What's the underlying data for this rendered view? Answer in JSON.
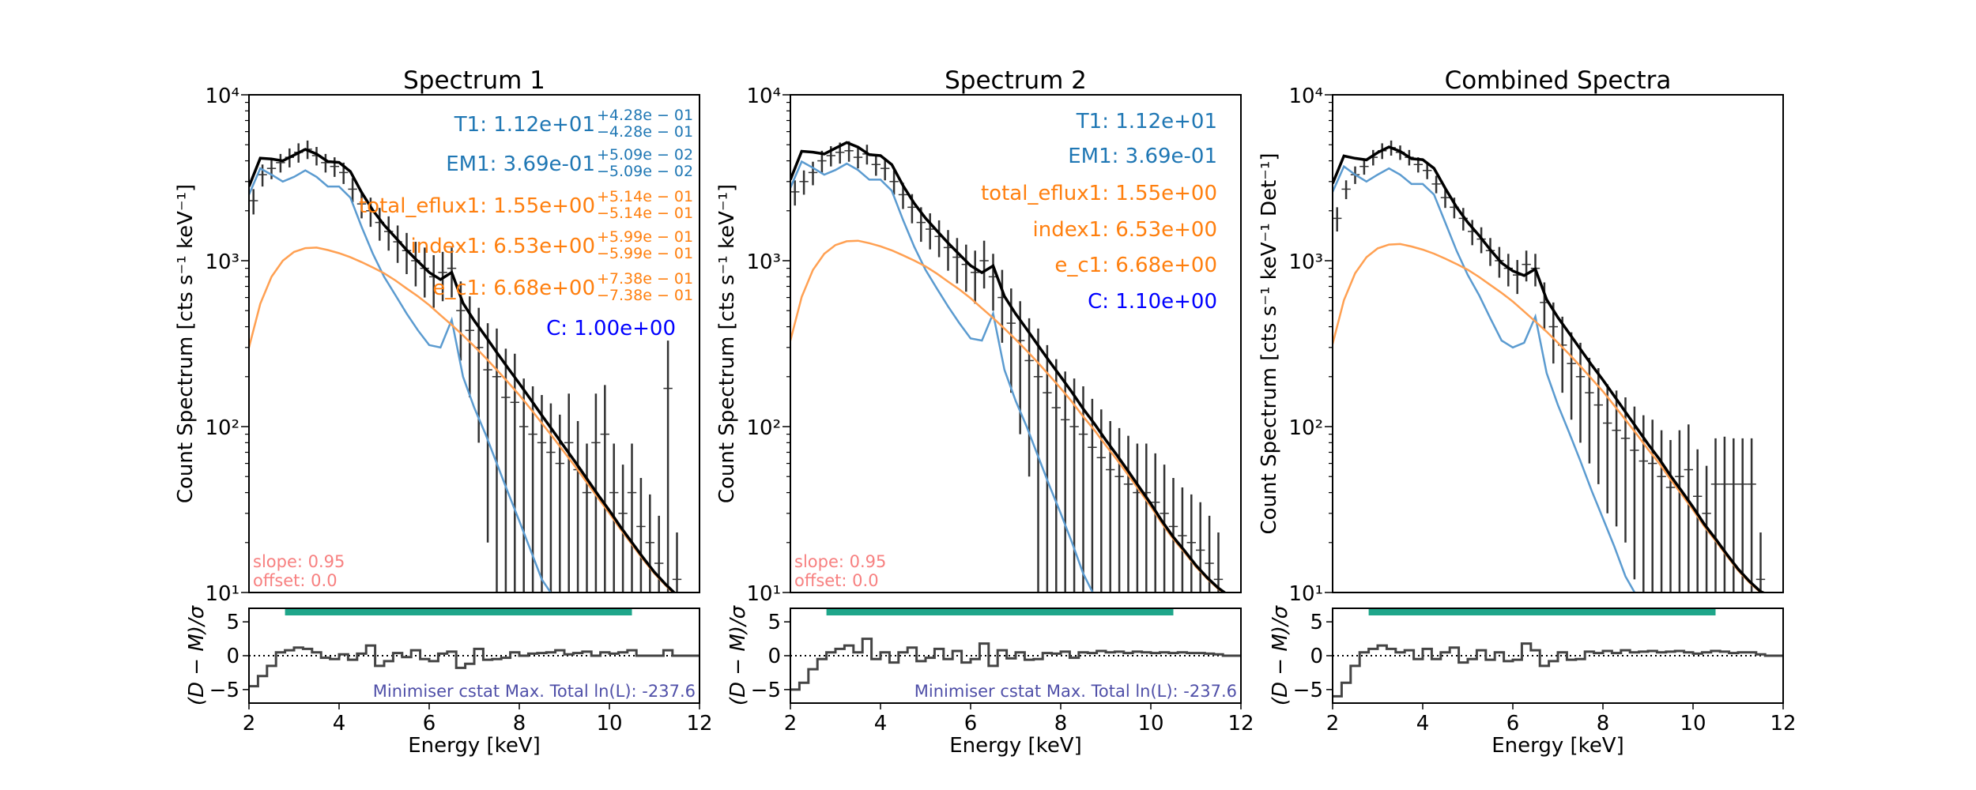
{
  "colors": {
    "thermal": "#5b9bd0",
    "nonthermal": "#ffa052",
    "total": "#000000",
    "data": "#333333",
    "residual": "#444444",
    "fit_range": "#1fa68a",
    "param_thermal": "#1f77b4",
    "param_nonthermal": "#ff7f0e",
    "param_const": "#0000ff",
    "calib": "#f78080",
    "stat": "#4f4fa8"
  },
  "chart_data": [
    {
      "type": "line",
      "title": "Spectrum 1",
      "ylabel": "Count Spectrum [cts s⁻¹ keV⁻¹]",
      "xlabel": "Energy [keV]",
      "residual_ylabel": "(D − M)/σ",
      "yscale": "log",
      "xlim": [
        2,
        12
      ],
      "ylim": [
        10,
        10000
      ],
      "residual_ylim": [
        -7,
        7
      ],
      "x_ticks": [
        "2",
        "4",
        "6",
        "8",
        "10",
        "12"
      ],
      "y_ticks": [
        "10¹",
        "10²",
        "10³",
        "10⁴"
      ],
      "residual_ticks": [
        "5",
        "0",
        "−5"
      ],
      "fit_range": [
        2.8,
        10.5
      ],
      "model_energy": [
        2,
        2.25,
        2.5,
        2.75,
        3,
        3.25,
        3.5,
        3.75,
        4,
        4.25,
        4.5,
        4.75,
        5,
        5.25,
        5.5,
        5.75,
        6,
        6.25,
        6.5,
        6.75,
        7,
        7.25,
        7.5,
        7.75,
        8,
        8.25,
        8.5,
        8.75,
        9,
        9.25,
        9.5,
        9.75,
        10,
        10.25,
        10.5,
        10.75,
        11,
        11.25,
        11.5,
        11.75,
        12
      ],
      "thermal": [
        2500,
        3600,
        3300,
        3000,
        3200,
        3500,
        3200,
        2800,
        2800,
        2400,
        1600,
        1100,
        800,
        620,
        480,
        380,
        310,
        300,
        440,
        200,
        130,
        90,
        60,
        40,
        27,
        18,
        12,
        8,
        5.5,
        3.7,
        2.5,
        1.7,
        1.2,
        0.8,
        0.55,
        0.38,
        0.26,
        0.18,
        0.12,
        0.08,
        0.06
      ],
      "nonthermal": [
        300,
        550,
        800,
        1000,
        1130,
        1190,
        1200,
        1160,
        1110,
        1050,
        980,
        910,
        840,
        760,
        680,
        610,
        540,
        470,
        410,
        355,
        305,
        260,
        220,
        185,
        155,
        128,
        105,
        86,
        70,
        57,
        46,
        37,
        30,
        24,
        19.5,
        15.8,
        13,
        11,
        9.5,
        8,
        7
      ],
      "data_energy": [
        2.1,
        2.3,
        2.5,
        2.7,
        2.9,
        3.1,
        3.3,
        3.5,
        3.7,
        3.9,
        4.1,
        4.3,
        4.5,
        4.7,
        4.9,
        5.1,
        5.3,
        5.5,
        5.7,
        5.9,
        6.1,
        6.3,
        6.5,
        6.7,
        6.9,
        7.1,
        7.3,
        7.5,
        7.7,
        7.9,
        8.1,
        8.3,
        8.5,
        8.7,
        8.9,
        9.1,
        9.3,
        9.5,
        9.7,
        9.9,
        10.1,
        10.3,
        10.5,
        10.7,
        10.9,
        11.1,
        11.3,
        11.5
      ],
      "counts": [
        2300,
        3300,
        3600,
        3900,
        4200,
        4500,
        4700,
        4300,
        3900,
        3700,
        3400,
        2700,
        2200,
        2000,
        1700,
        1500,
        1300,
        1150,
        1000,
        900,
        800,
        850,
        900,
        500,
        380,
        300,
        220,
        200,
        150,
        140,
        100,
        90,
        80,
        70,
        60,
        80,
        55,
        40,
        80,
        90,
        40,
        30,
        40,
        25,
        20,
        15,
        170,
        12
      ],
      "errors": [
        400,
        500,
        500,
        500,
        550,
        600,
        600,
        550,
        500,
        500,
        500,
        450,
        400,
        400,
        380,
        350,
        330,
        320,
        300,
        300,
        280,
        280,
        300,
        250,
        230,
        220,
        200,
        190,
        145,
        135,
        95,
        85,
        75,
        68,
        58,
        78,
        53,
        39,
        78,
        88,
        39,
        29,
        39,
        24,
        19,
        14,
        160,
        11
      ],
      "residuals": [
        -4.5,
        -3,
        -1.5,
        0.5,
        0.8,
        1.2,
        1,
        0.5,
        -0.3,
        -0.5,
        0.2,
        -0.6,
        0.3,
        1.5,
        -1.5,
        -0.8,
        0.4,
        -0.2,
        0.8,
        -0.5,
        -0.8,
        0.3,
        0.6,
        -1.8,
        -1.2,
        1,
        -0.6,
        -0.5,
        -0.3,
        0.5,
        0,
        0.3,
        0.4,
        0.5,
        0.8,
        0.2,
        0.4,
        0.6,
        0,
        0.5,
        0.3,
        0.5,
        0.8,
        0,
        0,
        0,
        0.8,
        0
      ],
      "parameters": [
        {
          "label": "T1: 1.12e+01",
          "plus": "+4.28e − 01",
          "minus": "−4.28e − 01",
          "group": "thermal"
        },
        {
          "label": "EM1: 3.69e-01",
          "plus": "+5.09e − 02",
          "minus": "−5.09e − 02",
          "group": "thermal"
        },
        {
          "label": "total_eflux1: 1.55e+00",
          "plus": "+5.14e − 01",
          "minus": "−5.14e − 01",
          "group": "nonthermal"
        },
        {
          "label": "index1: 6.53e+00",
          "plus": "+5.99e − 01",
          "minus": "−5.99e − 01",
          "group": "nonthermal"
        },
        {
          "label": "e_c1: 6.68e+00",
          "plus": "+7.38e − 01",
          "minus": "−7.38e − 01",
          "group": "nonthermal"
        },
        {
          "label": "C: 1.00e+00",
          "group": "const"
        }
      ],
      "calibration": [
        "slope: 0.95",
        "offset: 0.0"
      ],
      "statistic": "Minimiser cstat Max. Total ln(L): -237.6"
    },
    {
      "type": "line",
      "title": "Spectrum 2",
      "ylabel": "Count Spectrum [cts s⁻¹ keV⁻¹]",
      "xlabel": "Energy [keV]",
      "residual_ylabel": "(D − M)/σ",
      "yscale": "log",
      "xlim": [
        2,
        12
      ],
      "ylim": [
        10,
        10000
      ],
      "residual_ylim": [
        -7,
        7
      ],
      "x_ticks": [
        "2",
        "4",
        "6",
        "8",
        "10",
        "12"
      ],
      "y_ticks": [
        "10¹",
        "10²",
        "10³",
        "10⁴"
      ],
      "residual_ticks": [
        "5",
        "0",
        "−5"
      ],
      "fit_range": [
        2.8,
        10.5
      ],
      "model_energy": [
        2,
        2.25,
        2.5,
        2.75,
        3,
        3.25,
        3.5,
        3.75,
        4,
        4.25,
        4.5,
        4.75,
        5,
        5.25,
        5.5,
        5.75,
        6,
        6.25,
        6.5,
        6.75,
        7,
        7.25,
        7.5,
        7.75,
        8,
        8.25,
        8.5,
        8.75,
        9,
        9.25,
        9.5,
        9.75,
        10,
        10.25,
        10.5,
        10.75,
        11,
        11.25,
        11.5,
        11.75,
        12
      ],
      "thermal": [
        2750,
        3960,
        3630,
        3300,
        3520,
        3850,
        3520,
        3080,
        3080,
        2640,
        1760,
        1210,
        880,
        680,
        530,
        420,
        340,
        330,
        480,
        220,
        143,
        99,
        66,
        44,
        30,
        20,
        13,
        8.8,
        6,
        4.1,
        2.8,
        1.9,
        1.3,
        0.9,
        0.6,
        0.42,
        0.29,
        0.2,
        0.13,
        0.09,
        0.07
      ],
      "nonthermal": [
        330,
        605,
        880,
        1100,
        1243,
        1309,
        1320,
        1276,
        1221,
        1155,
        1078,
        1001,
        924,
        836,
        748,
        671,
        594,
        517,
        451,
        390,
        335,
        286,
        242,
        203,
        170,
        141,
        115,
        95,
        77,
        63,
        51,
        41,
        33,
        26,
        21,
        17.4,
        14.3,
        12.1,
        10.5,
        8.8,
        7.7
      ],
      "data_energy": [
        2.1,
        2.3,
        2.5,
        2.7,
        2.9,
        3.1,
        3.3,
        3.5,
        3.7,
        3.9,
        4.1,
        4.3,
        4.5,
        4.7,
        4.9,
        5.1,
        5.3,
        5.5,
        5.7,
        5.9,
        6.1,
        6.3,
        6.5,
        6.7,
        6.9,
        7.1,
        7.3,
        7.5,
        7.7,
        7.9,
        8.1,
        8.3,
        8.5,
        8.7,
        8.9,
        9.1,
        9.3,
        9.5,
        9.7,
        9.9,
        10.1,
        10.3,
        10.5,
        10.7,
        10.9,
        11.1,
        11.3,
        11.5
      ],
      "counts": [
        2600,
        3000,
        3400,
        4000,
        4300,
        4500,
        4600,
        4200,
        4400,
        3800,
        3600,
        3000,
        2500,
        2100,
        1700,
        1550,
        1400,
        1200,
        1050,
        950,
        850,
        1000,
        800,
        600,
        420,
        330,
        250,
        200,
        160,
        130,
        110,
        100,
        90,
        75,
        65,
        55,
        50,
        45,
        40,
        40,
        35,
        30,
        25,
        22,
        20,
        18,
        15,
        12
      ],
      "errors": [
        450,
        500,
        550,
        600,
        600,
        650,
        650,
        600,
        600,
        550,
        550,
        500,
        450,
        420,
        400,
        380,
        350,
        330,
        320,
        300,
        300,
        320,
        300,
        280,
        260,
        240,
        200,
        190,
        150,
        125,
        105,
        95,
        85,
        72,
        62,
        53,
        48,
        43,
        39,
        39,
        34,
        29,
        24,
        21,
        19,
        17,
        14,
        11
      ],
      "residuals": [
        -5,
        -4,
        -2,
        -0.5,
        0.5,
        1,
        1.5,
        0.5,
        2.5,
        -0.5,
        0.5,
        -1,
        0.5,
        1.2,
        -0.8,
        -0.3,
        1,
        -0.5,
        0.7,
        -1,
        -0.5,
        1.8,
        -1.5,
        0.8,
        -0.4,
        0.5,
        -0.6,
        -0.5,
        0.4,
        0.3,
        0.6,
        -0.3,
        0.5,
        0.4,
        0.7,
        0.5,
        0.6,
        0.4,
        0.6,
        0.5,
        0.4,
        0.5,
        0.4,
        0.5,
        0.4,
        0.4,
        0.3,
        0.2
      ],
      "parameters": [
        {
          "label": "T1: 1.12e+01",
          "group": "thermal"
        },
        {
          "label": "EM1: 3.69e-01",
          "group": "thermal"
        },
        {
          "label": "total_eflux1: 1.55e+00",
          "group": "nonthermal"
        },
        {
          "label": "index1: 6.53e+00",
          "group": "nonthermal"
        },
        {
          "label": "e_c1: 6.68e+00",
          "group": "nonthermal"
        },
        {
          "label": "C: 1.10e+00",
          "group": "const"
        }
      ],
      "calibration": [
        "slope: 0.95",
        "offset: 0.0"
      ],
      "statistic": "Minimiser cstat Max. Total ln(L): -237.6"
    },
    {
      "type": "line",
      "title": "Combined Spectra",
      "ylabel": "Count Spectrum [cts s⁻¹ keV⁻¹ Det⁻¹]",
      "xlabel": "Energy [keV]",
      "residual_ylabel": "(D − M)/σ",
      "yscale": "log",
      "xlim": [
        2,
        12
      ],
      "ylim": [
        10,
        10000
      ],
      "residual_ylim": [
        -7,
        7
      ],
      "x_ticks": [
        "2",
        "4",
        "6",
        "8",
        "10",
        "12"
      ],
      "y_ticks": [
        "10¹",
        "10²",
        "10³",
        "10⁴"
      ],
      "residual_ticks": [
        "5",
        "0",
        "−5"
      ],
      "fit_range": [
        2.8,
        10.5
      ],
      "model_energy": [
        2,
        2.25,
        2.5,
        2.75,
        3,
        3.25,
        3.5,
        3.75,
        4,
        4.25,
        4.5,
        4.75,
        5,
        5.25,
        5.5,
        5.75,
        6,
        6.25,
        6.5,
        6.75,
        7,
        7.25,
        7.5,
        7.75,
        8,
        8.25,
        8.5,
        8.75,
        9,
        9.25,
        9.5,
        9.75,
        10,
        10.25,
        10.5,
        10.75,
        11,
        11.25,
        11.5,
        11.75,
        12
      ],
      "thermal": [
        2600,
        3700,
        3300,
        3000,
        3300,
        3600,
        3300,
        2900,
        2900,
        2500,
        1700,
        1150,
        820,
        620,
        450,
        330,
        300,
        320,
        460,
        210,
        135,
        92,
        62,
        41,
        28,
        19,
        12.5,
        8.2,
        5.6,
        3.8,
        2.6,
        1.8,
        1.2,
        0.8,
        0.56,
        0.38,
        0.26,
        0.18,
        0.12,
        0.08,
        0.06
      ],
      "nonthermal": [
        315,
        578,
        840,
        1050,
        1186,
        1250,
        1260,
        1218,
        1166,
        1102,
        1029,
        955,
        882,
        798,
        714,
        640,
        567,
        494,
        430,
        373,
        320,
        273,
        231,
        194,
        163,
        134,
        110,
        90,
        73,
        60,
        48,
        39,
        31.5,
        25,
        20.5,
        16.6,
        13.6,
        11.5,
        10,
        8.4,
        7.4
      ],
      "data_energy": [
        2.1,
        2.3,
        2.5,
        2.7,
        2.9,
        3.1,
        3.3,
        3.5,
        3.7,
        3.9,
        4.1,
        4.3,
        4.5,
        4.7,
        4.9,
        5.1,
        5.3,
        5.5,
        5.7,
        5.9,
        6.1,
        6.3,
        6.5,
        6.7,
        6.9,
        7.1,
        7.3,
        7.5,
        7.7,
        7.9,
        8.1,
        8.3,
        8.5,
        8.7,
        8.9,
        9.1,
        9.3,
        9.5,
        9.7,
        9.9,
        10.1,
        10.3,
        10.5,
        10.7,
        10.9,
        11.1,
        11.3,
        11.5
      ],
      "counts": [
        1800,
        2700,
        3300,
        3700,
        4200,
        4600,
        4800,
        4500,
        4200,
        3800,
        3500,
        2900,
        2400,
        2100,
        1800,
        1500,
        1350,
        1150,
        1000,
        900,
        820,
        950,
        900,
        560,
        400,
        310,
        240,
        200,
        160,
        135,
        105,
        95,
        85,
        72,
        62,
        60,
        50,
        43,
        50,
        55,
        38,
        30,
        45,
        45,
        45,
        45,
        45,
        12
      ],
      "errors": [
        300,
        350,
        400,
        400,
        450,
        500,
        500,
        450,
        450,
        400,
        400,
        350,
        320,
        300,
        280,
        260,
        240,
        220,
        210,
        200,
        190,
        200,
        200,
        180,
        160,
        150,
        130,
        120,
        100,
        90,
        75,
        70,
        65,
        60,
        55,
        50,
        45,
        40,
        45,
        48,
        35,
        28,
        40,
        42,
        40,
        40,
        40,
        11
      ],
      "residuals": [
        -6,
        -4,
        -1.5,
        0.5,
        1,
        1.5,
        1,
        0.5,
        0.8,
        -0.5,
        1,
        -0.5,
        0.5,
        1.2,
        -1,
        -0.5,
        0.8,
        -0.6,
        0.5,
        -0.8,
        -0.6,
        1.8,
        0.8,
        -1.5,
        -0.8,
        0.5,
        -0.6,
        -0.5,
        0.6,
        0.4,
        0.7,
        0.4,
        0.8,
        0.5,
        0.6,
        0.7,
        0.5,
        0.6,
        0.7,
        0.5,
        0.3,
        0.5,
        0.7,
        0.6,
        0.4,
        0.5,
        0.5,
        0.2
      ],
      "parameters": [],
      "calibration": [],
      "statistic": ""
    }
  ]
}
